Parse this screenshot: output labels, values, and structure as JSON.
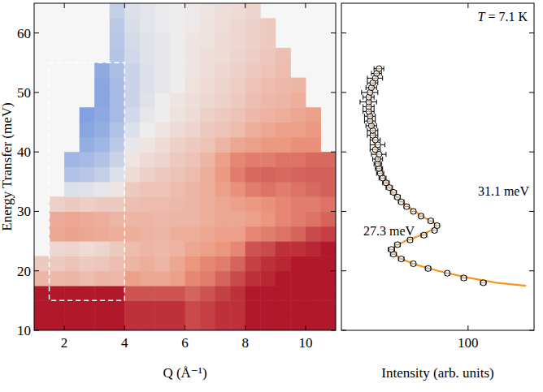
{
  "chart_data": [
    {
      "type": "heatmap",
      "xlabel": "Q (Å⁻¹)",
      "ylabel": "Energy Transfer (meV)",
      "xlim": [
        1,
        11
      ],
      "ylim": [
        10,
        65
      ],
      "xticks": [
        2,
        4,
        6,
        8,
        10
      ],
      "yticks": [
        10,
        20,
        30,
        40,
        50,
        60
      ],
      "zlim": [
        0,
        1
      ],
      "x": [
        1.25,
        1.75,
        2.25,
        2.75,
        3.25,
        3.75,
        4.25,
        4.75,
        5.25,
        5.75,
        6.25,
        6.75,
        7.25,
        7.75,
        8.25,
        8.75,
        9.25,
        9.75,
        10.25,
        10.75
      ],
      "y": [
        11.25,
        13.75,
        16.25,
        18.75,
        21.25,
        23.75,
        26.25,
        28.75,
        31.25,
        33.75,
        36.25,
        38.75,
        41.25,
        43.75,
        46.25,
        48.75,
        51.25,
        53.75,
        56.25,
        58.75,
        61.25,
        63.75
      ],
      "cells": [
        [
          1,
          1,
          1,
          1,
          1,
          1,
          0.95,
          0.95,
          0.95,
          0.95,
          0.9,
          0.92,
          0.95,
          0.95,
          1,
          1,
          1,
          1,
          1,
          1
        ],
        [
          1,
          1,
          1,
          1,
          1,
          1,
          0.95,
          0.95,
          0.95,
          0.95,
          0.9,
          0.92,
          0.95,
          0.95,
          1,
          1,
          1,
          1,
          1,
          1
        ],
        [
          1,
          1,
          1,
          1,
          1,
          1,
          0.88,
          0.88,
          0.88,
          0.88,
          0.85,
          0.88,
          0.92,
          0.95,
          1,
          1,
          1,
          1,
          1,
          1
        ],
        [
          0.66,
          0.65,
          0.66,
          0.64,
          0.66,
          0.65,
          0.72,
          0.7,
          0.7,
          0.72,
          0.78,
          0.8,
          0.85,
          0.9,
          0.95,
          0.97,
          1,
          1,
          1,
          1
        ],
        [
          0.6,
          0.6,
          0.62,
          0.6,
          0.61,
          0.63,
          0.66,
          0.68,
          0.66,
          0.7,
          0.75,
          0.78,
          0.8,
          0.85,
          0.92,
          0.95,
          0.97,
          1,
          1,
          1
        ],
        [
          null,
          0.56,
          0.57,
          0.55,
          0.57,
          0.6,
          0.64,
          0.66,
          0.65,
          0.67,
          0.7,
          0.72,
          0.75,
          0.78,
          0.88,
          0.9,
          0.95,
          0.95,
          0.97,
          1
        ],
        [
          null,
          0.7,
          0.71,
          0.7,
          0.69,
          0.68,
          0.68,
          0.67,
          0.66,
          0.68,
          0.68,
          0.7,
          0.72,
          0.72,
          0.78,
          0.8,
          0.82,
          0.85,
          0.9,
          0.92
        ],
        [
          null,
          0.69,
          0.7,
          0.69,
          0.68,
          0.66,
          0.66,
          0.66,
          0.65,
          0.66,
          0.66,
          0.68,
          0.7,
          0.7,
          0.72,
          0.75,
          0.78,
          0.8,
          0.82,
          0.85
        ],
        [
          null,
          0.58,
          0.6,
          0.59,
          0.6,
          0.6,
          0.63,
          0.64,
          0.64,
          0.65,
          0.66,
          0.68,
          0.7,
          0.72,
          0.74,
          0.76,
          0.78,
          0.8,
          0.8,
          0.82
        ],
        [
          null,
          null,
          0.45,
          0.46,
          0.48,
          0.52,
          0.6,
          0.62,
          0.62,
          0.64,
          0.66,
          0.68,
          0.72,
          0.76,
          0.8,
          0.82,
          0.8,
          0.82,
          0.84,
          0.86
        ],
        [
          null,
          null,
          0.33,
          0.35,
          0.38,
          0.45,
          0.55,
          0.58,
          0.6,
          0.62,
          0.64,
          0.68,
          0.74,
          0.8,
          0.84,
          0.85,
          0.84,
          0.85,
          0.86,
          0.86
        ],
        [
          null,
          null,
          0.28,
          0.3,
          0.33,
          0.4,
          0.52,
          0.55,
          0.57,
          0.6,
          0.62,
          0.66,
          0.72,
          0.78,
          0.8,
          0.8,
          0.82,
          0.82,
          0.84,
          0.84
        ],
        [
          null,
          null,
          null,
          0.25,
          0.28,
          0.36,
          0.48,
          0.52,
          0.55,
          0.58,
          0.6,
          0.62,
          0.66,
          0.7,
          0.72,
          0.74,
          0.74,
          0.76,
          0.76,
          null
        ],
        [
          null,
          null,
          null,
          0.22,
          0.25,
          0.33,
          0.45,
          0.5,
          0.52,
          0.55,
          0.57,
          0.6,
          0.62,
          0.64,
          0.68,
          0.7,
          0.72,
          0.72,
          0.74,
          null
        ],
        [
          null,
          null,
          null,
          0.2,
          0.23,
          0.3,
          0.42,
          0.48,
          0.5,
          0.53,
          0.55,
          0.58,
          0.6,
          0.62,
          0.65,
          0.67,
          0.68,
          0.7,
          0.72,
          null
        ],
        [
          null,
          null,
          null,
          null,
          0.22,
          0.3,
          0.4,
          0.46,
          0.5,
          0.52,
          0.54,
          0.56,
          0.58,
          0.6,
          0.63,
          0.65,
          0.66,
          0.68,
          null,
          null
        ],
        [
          null,
          null,
          null,
          null,
          0.22,
          0.3,
          0.4,
          0.45,
          0.48,
          0.5,
          0.53,
          0.55,
          0.57,
          0.59,
          0.62,
          0.64,
          0.65,
          0.66,
          null,
          null
        ],
        [
          null,
          null,
          null,
          null,
          0.24,
          0.32,
          0.4,
          0.45,
          0.48,
          0.5,
          0.52,
          0.54,
          0.56,
          0.58,
          0.6,
          0.62,
          0.64,
          null,
          null,
          null
        ],
        [
          null,
          null,
          null,
          null,
          null,
          0.34,
          0.42,
          0.46,
          0.48,
          0.5,
          0.52,
          0.54,
          0.55,
          0.57,
          0.59,
          0.61,
          0.63,
          null,
          null,
          null
        ],
        [
          null,
          null,
          null,
          null,
          null,
          0.35,
          0.43,
          0.46,
          0.48,
          0.5,
          0.52,
          0.53,
          0.55,
          0.56,
          0.58,
          0.6,
          null,
          null,
          null,
          null
        ],
        [
          null,
          null,
          null,
          null,
          null,
          0.36,
          0.44,
          0.47,
          0.49,
          0.5,
          0.51,
          0.53,
          0.54,
          0.56,
          0.58,
          0.6,
          null,
          null,
          null,
          null
        ],
        [
          null,
          null,
          null,
          null,
          null,
          0.38,
          0.45,
          0.47,
          0.49,
          0.5,
          0.51,
          0.52,
          0.54,
          0.55,
          0.57,
          null,
          null,
          null,
          null,
          null
        ]
      ],
      "region": {
        "x": [
          1.5,
          4
        ],
        "y": [
          15,
          55
        ]
      }
    },
    {
      "type": "scatter",
      "xlabel": "Intensity (arb. units)",
      "log": "x",
      "xlim": [
        22,
        220
      ],
      "ylim": [
        10,
        65
      ],
      "xticks": [
        100
      ],
      "yticks": [
        10,
        20,
        30,
        40,
        50,
        60
      ],
      "tick_labels": "x",
      "annotations": [
        "T = 7.1 K",
        "31.1 meV",
        "27.3 meV"
      ],
      "series": [
        {
          "type": "scatter",
          "color": "#000000",
          "marker": "circle",
          "x": [
            120,
            95,
            78,
            62,
            52,
            45,
            41,
            40,
            43,
            50,
            59,
            67,
            69,
            64,
            57,
            52,
            48,
            45,
            43,
            41,
            39,
            37.5,
            36,
            35,
            34.5,
            34,
            34,
            34.5,
            33,
            34,
            33,
            32,
            32,
            31.5,
            31,
            31,
            30.5,
            30.5,
            30.5,
            30.5,
            31,
            31.5,
            32,
            33,
            33.5,
            34.5
          ],
          "values": [
            18.0,
            18.8,
            19.6,
            20.4,
            21.2,
            22.0,
            22.8,
            23.6,
            24.4,
            25.2,
            26.0,
            26.8,
            27.6,
            28.4,
            29.2,
            30.0,
            30.8,
            31.6,
            32.4,
            33.2,
            34.0,
            34.8,
            35.6,
            36.4,
            37.2,
            38.0,
            38.8,
            39.6,
            40.4,
            41.2,
            42.0,
            42.8,
            43.6,
            44.4,
            45.2,
            46.0,
            46.8,
            47.6,
            48.4,
            49.2,
            50.0,
            50.8,
            51.6,
            52.4,
            53.2,
            54.0
          ],
          "errors": [
            4,
            3,
            2,
            2,
            1.5,
            1.5,
            1.5,
            1.5,
            1.5,
            1.5,
            2,
            2,
            2,
            2,
            1.5,
            1.5,
            1.5,
            1.5,
            1.5,
            1.5,
            1.5,
            1.5,
            1.5,
            1.5,
            1.5,
            1.5,
            2,
            3,
            2,
            3,
            2,
            2,
            2,
            2,
            2,
            2,
            2,
            2,
            3,
            2,
            3,
            2,
            2,
            3,
            2,
            2
          ]
        },
        {
          "type": "line",
          "color": "#f7941d",
          "line_style": "solid",
          "x": [
            200,
            140,
            95,
            70,
            54,
            45,
            41,
            41.5,
            47,
            57,
            66,
            68.5,
            67,
            59,
            53,
            48,
            44,
            41,
            39,
            36,
            34.5,
            33.5,
            32.5,
            32,
            31.5,
            31,
            31.5,
            32.5,
            34.5
          ],
          "values": [
            17.5,
            18,
            19,
            20,
            21,
            22,
            23,
            24,
            25,
            26,
            27,
            27.5,
            28,
            29,
            30,
            31,
            32,
            33,
            34,
            36,
            38,
            40,
            42,
            44,
            46,
            48,
            50,
            52,
            54
          ]
        }
      ]
    }
  ]
}
